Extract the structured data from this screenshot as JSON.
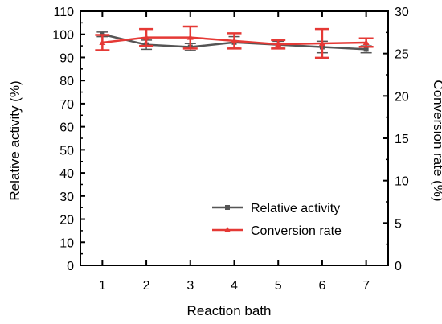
{
  "chart_data": {
    "type": "line",
    "xlabel": "Reaction bath",
    "ylabel_left": "Relative activity (%)",
    "ylabel_right": "Conversion rate (%)",
    "x": [
      1,
      2,
      3,
      4,
      5,
      6,
      7
    ],
    "x_tick_labels": [
      "1",
      "2",
      "3",
      "4",
      "5",
      "6",
      "7"
    ],
    "xlim": [
      0.5,
      7.5
    ],
    "ylim_left": [
      0,
      110
    ],
    "yticks_left": [
      "0",
      "10",
      "20",
      "30",
      "40",
      "50",
      "60",
      "70",
      "80",
      "90",
      "100",
      "110"
    ],
    "ylim_right": [
      0,
      30
    ],
    "yticks_right": [
      "0",
      "5",
      "10",
      "15",
      "20",
      "25",
      "30"
    ],
    "grid": false,
    "legend_position": "bottom-right",
    "series": [
      {
        "name": "Relative activity",
        "axis": "left",
        "color": "#555555",
        "marker": "square",
        "values": [
          100.0,
          95.5,
          94.5,
          96.5,
          95.5,
          94.5,
          93.5
        ],
        "errors": [
          1.0,
          2.0,
          1.5,
          2.5,
          1.5,
          2.5,
          1.5
        ]
      },
      {
        "name": "Conversion rate",
        "axis": "right",
        "color": "#e53935",
        "marker": "triangle",
        "values": [
          26.3,
          26.9,
          26.9,
          26.5,
          26.1,
          26.2,
          26.3
        ],
        "errors": [
          0.9,
          1.0,
          1.3,
          0.9,
          0.5,
          1.7,
          0.5
        ]
      }
    ]
  }
}
